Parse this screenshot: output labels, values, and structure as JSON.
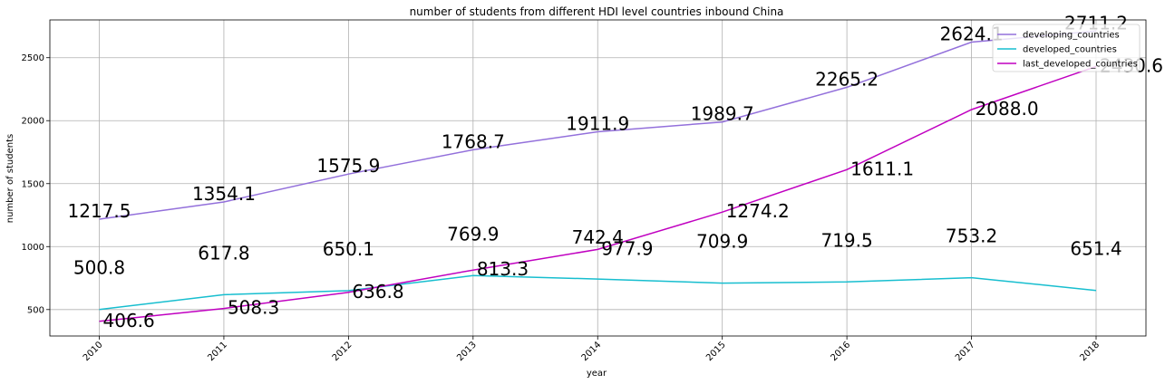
{
  "chart_data": {
    "type": "line",
    "title": "number of students from different HDI level countries inbound China",
    "xlabel": "year",
    "ylabel": "number of students",
    "categories": [
      "2010",
      "2011",
      "2012",
      "2013",
      "2014",
      "2015",
      "2016",
      "2017",
      "2018"
    ],
    "yticks": [
      500,
      1000,
      1500,
      2000,
      2500
    ],
    "ylim": [
      290,
      2800
    ],
    "grid": true,
    "legend_position": "top-right",
    "series": [
      {
        "name": "developing_countries",
        "color": "#9370db",
        "values": [
          1217.5,
          1354.1,
          1575.9,
          1768.7,
          1911.9,
          1989.7,
          2265.2,
          2624.1,
          2711.2
        ],
        "labels": [
          "1217.5",
          "1354.1",
          "1575.9",
          "1768.7",
          "1911.9",
          "1989.7",
          "2265.2",
          "2624.1",
          "2711.2"
        ]
      },
      {
        "name": "developed_countries",
        "color": "#17becf",
        "values": [
          500.8,
          617.8,
          650.1,
          769.9,
          742.4,
          709.9,
          719.5,
          753.2,
          651.4
        ],
        "labels": [
          "500.8",
          "617.8",
          "650.1",
          "769.9",
          "742.4",
          "709.9",
          "719.5",
          "753.2",
          "651.4"
        ]
      },
      {
        "name": "last_developed_countries",
        "color": "#c000c0",
        "values": [
          406.6,
          508.3,
          636.8,
          813.3,
          977.9,
          1274.2,
          1611.1,
          2088.0,
          2430.6
        ],
        "labels": [
          "406.6",
          "508.3",
          "636.8",
          "813.3",
          "977.9",
          "1274.2",
          "1611.1",
          "2088.0",
          "2430.6"
        ]
      }
    ]
  }
}
